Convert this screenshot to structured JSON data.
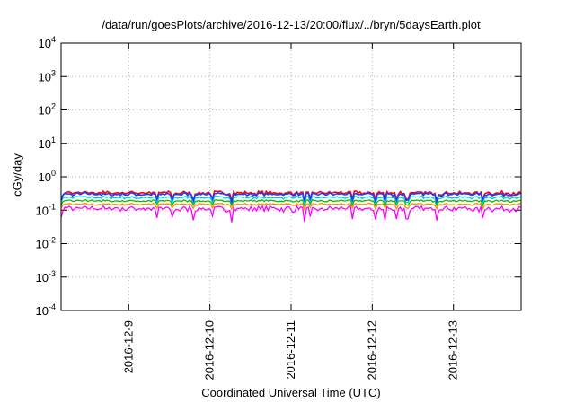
{
  "chart_data": {
    "type": "line",
    "title": "/data/run/goesPlots/archive/2016-12-13/20:00/flux/../bryn/5daysEarth.plot",
    "xlabel": "Coordinated Universal Time (UTC)",
    "ylabel": "cGy/day",
    "y_scale": "log",
    "ylim": [
      "1e-4",
      "1e4"
    ],
    "y_ticks": [
      {
        "base": "10",
        "exp": "-4"
      },
      {
        "base": "10",
        "exp": "-3"
      },
      {
        "base": "10",
        "exp": "-2"
      },
      {
        "base": "10",
        "exp": "-1"
      },
      {
        "base": "10",
        "exp": "0"
      },
      {
        "base": "10",
        "exp": "1"
      },
      {
        "base": "10",
        "exp": "2"
      },
      {
        "base": "10",
        "exp": "3"
      },
      {
        "base": "10",
        "exp": "4"
      }
    ],
    "xlim": [
      "2016-12-08 04:00",
      "2016-12-13 20:00"
    ],
    "x_ticks": [
      "2016-12-9",
      "2016-12-10",
      "2016-12-11",
      "2016-12-12",
      "2016-12-13"
    ],
    "grid": true,
    "legend": "none",
    "series": [
      {
        "color": "#ff00ff",
        "base": 0.11,
        "noise": 0.22,
        "dip": 0.5
      },
      {
        "color": "#ff8c00",
        "base": 0.15,
        "noise": 0.08,
        "dip": 0.25
      },
      {
        "color": "#00c000",
        "base": 0.19,
        "noise": 0.08,
        "dip": 0.25
      },
      {
        "color": "#00c8c8",
        "base": 0.24,
        "noise": 0.1,
        "dip": 0.3
      },
      {
        "color": "#ff0000",
        "base": 0.33,
        "noise": 0.14,
        "dip": 0.35
      },
      {
        "color": "#1e3cff",
        "base": 0.3,
        "noise": 0.12,
        "dip": 0.35
      }
    ]
  }
}
